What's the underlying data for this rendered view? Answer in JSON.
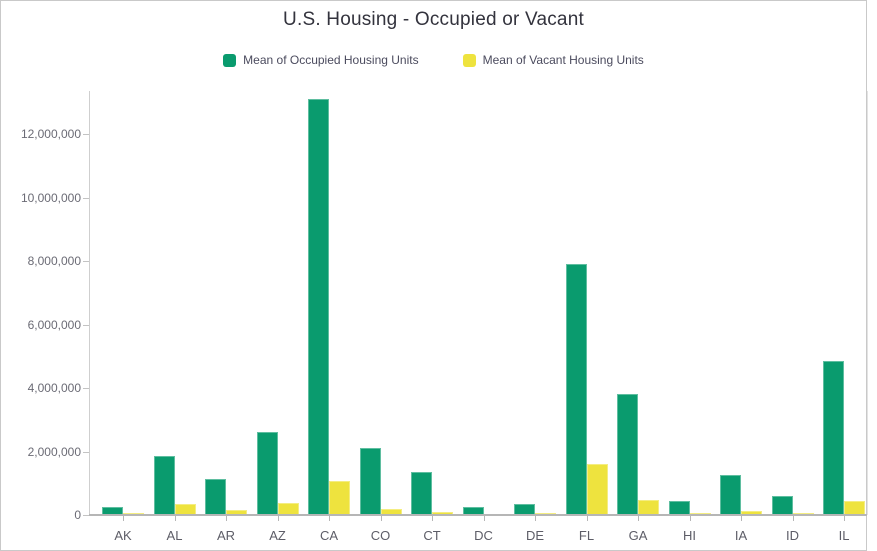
{
  "title": "U.S. Housing - Occupied or Vacant",
  "chart_data": {
    "type": "bar",
    "title": "U.S. Housing - Occupied or Vacant",
    "xlabel": "",
    "ylabel": "",
    "grid": false,
    "legend_position": "top",
    "ylim": [
      0,
      13350000
    ],
    "yticks": [
      0,
      2000000,
      4000000,
      6000000,
      8000000,
      10000000,
      12000000
    ],
    "categories": [
      "AK",
      "AL",
      "AR",
      "AZ",
      "CA",
      "CO",
      "CT",
      "DC",
      "DE",
      "FL",
      "GA",
      "HI",
      "IA",
      "ID",
      "IL"
    ],
    "series": [
      {
        "name": "Mean of Occupied Housing Units",
        "color": "#0a9b6e",
        "values": [
          250000,
          1860000,
          1130000,
          2600000,
          13100000,
          2100000,
          1350000,
          250000,
          340000,
          7900000,
          3800000,
          440000,
          1250000,
          600000,
          4850000
        ]
      },
      {
        "name": "Mean of Vacant Housing Units",
        "color": "#eee33e",
        "values": [
          60000,
          350000,
          160000,
          370000,
          1070000,
          190000,
          110000,
          25000,
          50000,
          1600000,
          460000,
          70000,
          130000,
          70000,
          430000
        ]
      }
    ]
  }
}
